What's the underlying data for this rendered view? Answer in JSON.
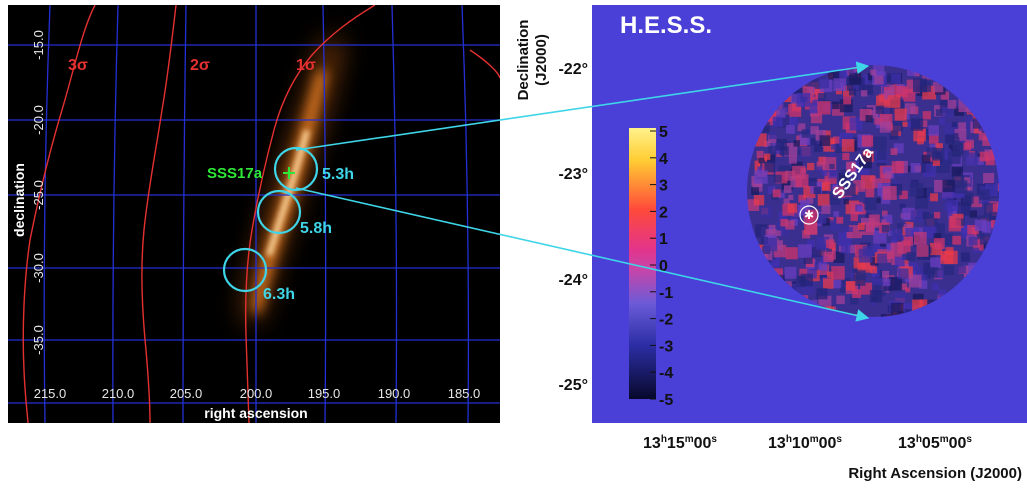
{
  "left_map": {
    "ra_ticks": [
      "215.0",
      "210.0",
      "205.0",
      "200.0",
      "195.0",
      "190.0",
      "185.0"
    ],
    "dec_ticks": [
      "-15.0",
      "-20.0",
      "-25.0",
      "-30.0",
      "-35.0"
    ],
    "xlabel": "right ascension",
    "ylabel": "declination",
    "contours": [
      {
        "label": "3σ"
      },
      {
        "label": "2σ"
      },
      {
        "label": "1σ"
      }
    ],
    "source_label": "SSS17a",
    "pointings": [
      {
        "label": "5.3h"
      },
      {
        "label": "5.8h"
      },
      {
        "label": "6.3h"
      }
    ],
    "colors": {
      "background": "#000000",
      "grid": "#2430d6",
      "contour": "#e53030",
      "pointing": "#3fd5e8",
      "source": "#2ee838",
      "probability": "#ff9a20"
    }
  },
  "right_map": {
    "title": "H.E.S.S.",
    "source_label": "SSS17a",
    "dec_ticks": [
      "-22°",
      "-23°",
      "-24°",
      "-25°"
    ],
    "ra_ticks": [
      {
        "h": "13",
        "m": "15",
        "s": "00"
      },
      {
        "h": "13",
        "m": "10",
        "s": "00"
      },
      {
        "h": "13",
        "m": "05",
        "s": "00"
      }
    ],
    "xlabel": "Right Ascension (J2000)",
    "ylabel_line1": "Declination",
    "ylabel_line2": "(J2000)",
    "colorbar_ticks": [
      "5",
      "4",
      "3",
      "2",
      "1",
      "0",
      "-1",
      "-2",
      "-3",
      "-4",
      "-5"
    ],
    "colorbar_range": [
      -5,
      5
    ],
    "colors": {
      "background": "#4a3fd6",
      "connector": "#3fd5e8"
    }
  }
}
